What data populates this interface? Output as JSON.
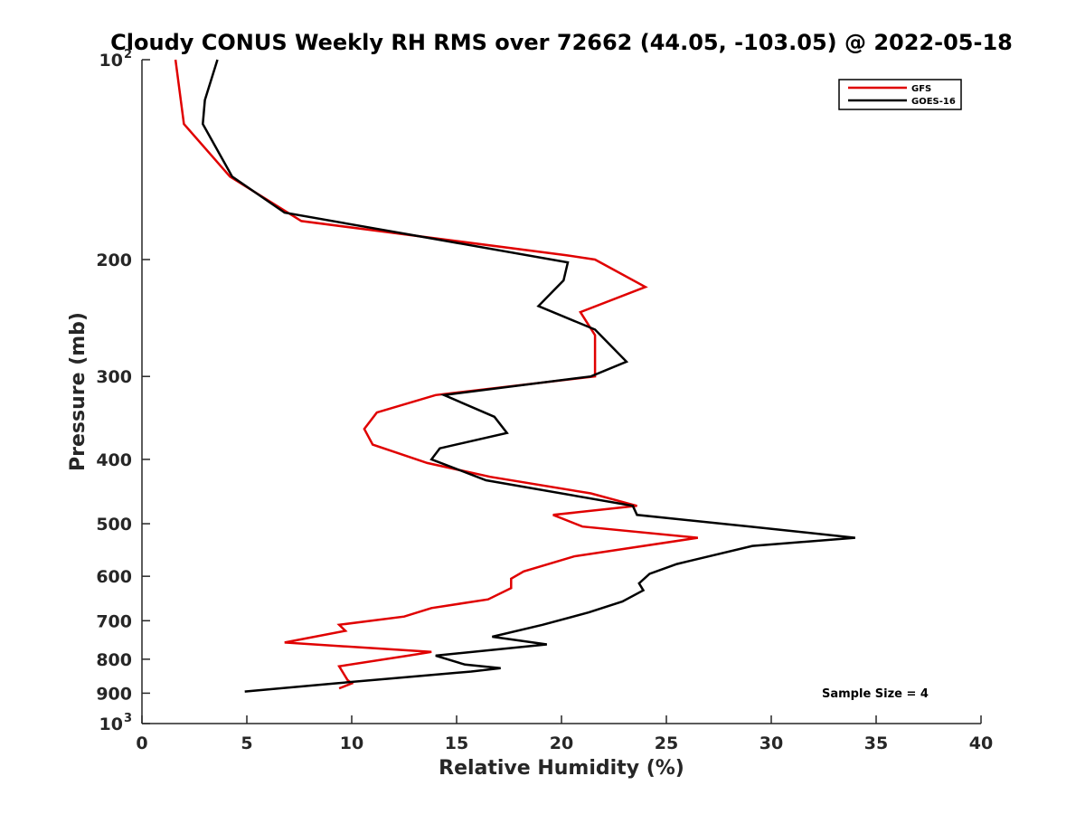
{
  "chart_data": {
    "type": "line",
    "title": "Cloudy CONUS Weekly RH RMS over 72662 (44.05, -103.05) @ 2022-05-18",
    "xlabel": "Relative Humidity (%)",
    "ylabel": "Pressure (mb)",
    "xlim": [
      0,
      40
    ],
    "ylim": [
      100,
      1000
    ],
    "yscale": "log",
    "y_reversed": true,
    "x_ticks": [
      0,
      5,
      10,
      15,
      20,
      25,
      30,
      35,
      40
    ],
    "y_ticks": [
      {
        "value": 100,
        "base": "10",
        "exp": "2"
      },
      {
        "value": 200,
        "label": "200"
      },
      {
        "value": 300,
        "label": "300"
      },
      {
        "value": 400,
        "label": "400"
      },
      {
        "value": 500,
        "label": "500"
      },
      {
        "value": 600,
        "label": "600"
      },
      {
        "value": 700,
        "label": "700"
      },
      {
        "value": 800,
        "label": "800"
      },
      {
        "value": 900,
        "label": "900"
      },
      {
        "value": 1000,
        "base": "10",
        "exp": "3"
      }
    ],
    "grid": false,
    "legend_position": "top-right",
    "series": [
      {
        "name": "GFS",
        "color": "#e00000",
        "points": [
          [
            1.6,
            100
          ],
          [
            2.0,
            125
          ],
          [
            4.2,
            150
          ],
          [
            7.6,
            175
          ],
          [
            20.2,
            197
          ],
          [
            21.6,
            200
          ],
          [
            24.0,
            220
          ],
          [
            20.9,
            240
          ],
          [
            21.6,
            260
          ],
          [
            21.6,
            275
          ],
          [
            21.6,
            300
          ],
          [
            14.0,
            320
          ],
          [
            11.2,
            340
          ],
          [
            10.6,
            360
          ],
          [
            11.0,
            380
          ],
          [
            13.6,
            405
          ],
          [
            16.6,
            425
          ],
          [
            21.4,
            450
          ],
          [
            23.6,
            470
          ],
          [
            19.6,
            485
          ],
          [
            21.0,
            505
          ],
          [
            26.5,
            525
          ],
          [
            20.6,
            560
          ],
          [
            18.2,
            590
          ],
          [
            17.6,
            605
          ],
          [
            17.6,
            625
          ],
          [
            16.5,
            650
          ],
          [
            13.8,
            670
          ],
          [
            12.5,
            690
          ],
          [
            9.4,
            710
          ],
          [
            9.7,
            725
          ],
          [
            6.8,
            755
          ],
          [
            13.8,
            780
          ],
          [
            12.7,
            790
          ],
          [
            9.4,
            820
          ],
          [
            9.8,
            860
          ],
          [
            10.0,
            870
          ],
          [
            9.4,
            885
          ]
        ]
      },
      {
        "name": "GOES-16",
        "color": "#000000",
        "points": [
          [
            3.6,
            100
          ],
          [
            3.0,
            115
          ],
          [
            2.9,
            125
          ],
          [
            4.3,
            150
          ],
          [
            6.8,
            170
          ],
          [
            20.3,
            202
          ],
          [
            20.1,
            215
          ],
          [
            18.9,
            235
          ],
          [
            21.6,
            255
          ],
          [
            23.1,
            285
          ],
          [
            21.4,
            300
          ],
          [
            14.4,
            320
          ],
          [
            16.8,
            345
          ],
          [
            17.4,
            365
          ],
          [
            14.2,
            385
          ],
          [
            13.8,
            400
          ],
          [
            16.4,
            430
          ],
          [
            23.4,
            470
          ],
          [
            23.6,
            485
          ],
          [
            29.0,
            505
          ],
          [
            34.0,
            525
          ],
          [
            29.1,
            540
          ],
          [
            25.5,
            575
          ],
          [
            24.2,
            595
          ],
          [
            23.7,
            615
          ],
          [
            23.9,
            630
          ],
          [
            22.9,
            655
          ],
          [
            21.3,
            680
          ],
          [
            19.1,
            710
          ],
          [
            16.7,
            740
          ],
          [
            19.3,
            760
          ],
          [
            14.0,
            790
          ],
          [
            15.4,
            815
          ],
          [
            17.1,
            825
          ],
          [
            15.7,
            835
          ],
          [
            11.9,
            855
          ],
          [
            9.2,
            870
          ],
          [
            4.9,
            895
          ]
        ]
      }
    ],
    "annotation": "Sample Size = 4"
  }
}
